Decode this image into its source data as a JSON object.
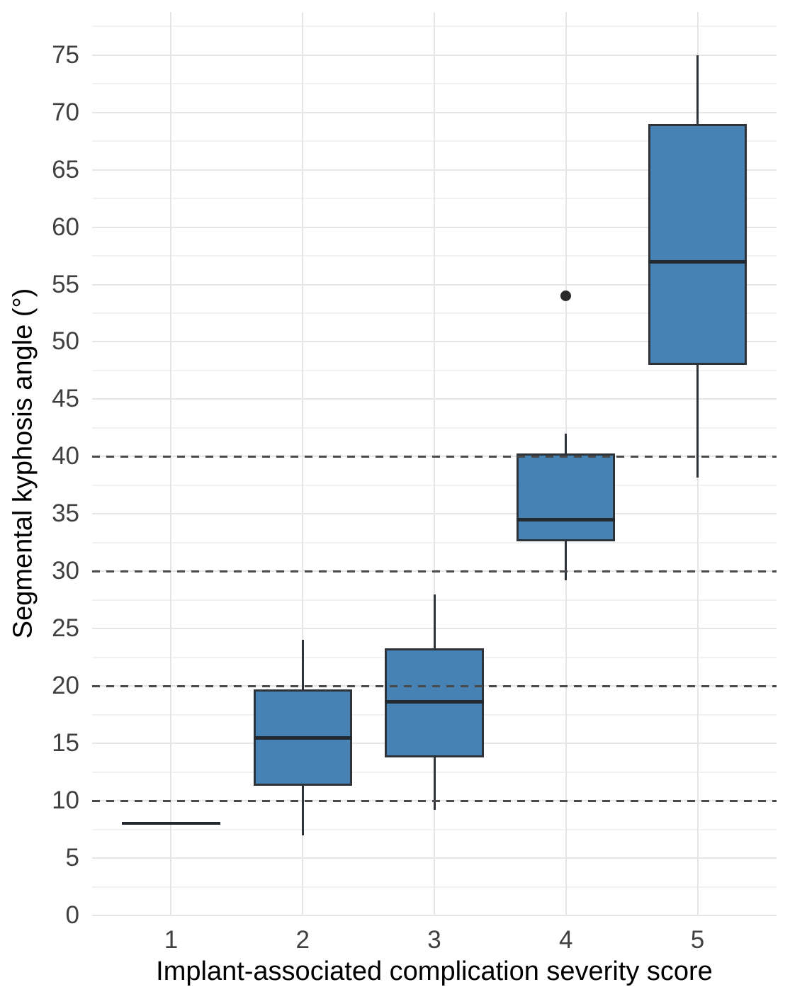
{
  "chart_data": {
    "type": "boxplot",
    "title": "",
    "xlabel": "Implant-associated complication severity score",
    "ylabel": "Segmental kyphosis angle (°)",
    "categories": [
      "1",
      "2",
      "3",
      "4",
      "5"
    ],
    "y_ticks": [
      "0",
      "5",
      "10",
      "15",
      "20",
      "25",
      "30",
      "35",
      "40",
      "45",
      "50",
      "55",
      "60",
      "65",
      "70",
      "75"
    ],
    "ylim": [
      0,
      78.75
    ],
    "major_step": 5,
    "minor_step": 2.5,
    "reference_lines": [
      10,
      20,
      30,
      40
    ],
    "grid": "major and minor horizontal gridlines, vertical gridline per category",
    "legend": "none",
    "series": [
      {
        "category": "1",
        "min": 8,
        "q1": 8,
        "median": 8,
        "q3": 8,
        "max": 8,
        "outliers": []
      },
      {
        "category": "2",
        "min": 7,
        "q1": 11.3,
        "median": 15.5,
        "q3": 19.7,
        "max": 24,
        "outliers": []
      },
      {
        "category": "3",
        "min": 9.2,
        "q1": 13.8,
        "median": 18.6,
        "q3": 23.3,
        "max": 28,
        "outliers": []
      },
      {
        "category": "4",
        "min": 29.2,
        "q1": 32.6,
        "median": 34.5,
        "q3": 40.3,
        "max": 42,
        "outliers": [
          54
        ]
      },
      {
        "category": "5",
        "min": 38.2,
        "q1": 48,
        "median": 57,
        "q3": 69,
        "max": 75,
        "outliers": []
      }
    ],
    "colors": {
      "box_fill": "#4682b4",
      "box_border": "#2d3338",
      "median": "#23292e",
      "whisker": "#2d3338",
      "outlier": "#2a2a2a",
      "grid_major": "#e6e6e6",
      "grid_minor": "#f2f2f2",
      "reference_line": "#4a4a4a",
      "tick_label": "#404040",
      "axis_title": "#000000",
      "background": "#ffffff"
    }
  }
}
